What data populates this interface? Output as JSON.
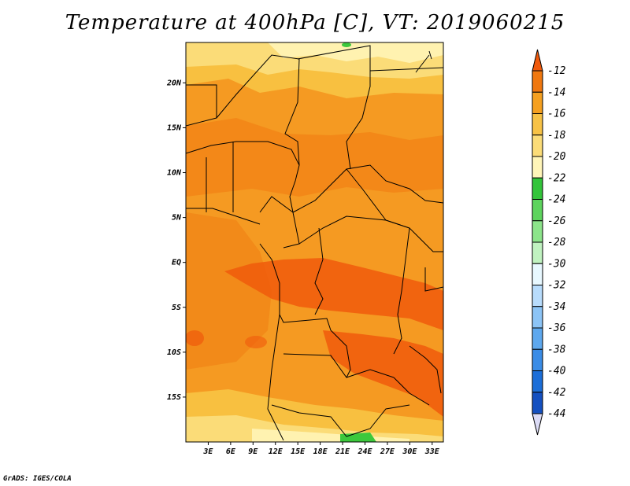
{
  "title": "Temperature at 400hPa [C], VT: 2019060215",
  "credit": "GrADS: IGES/COLA",
  "map": {
    "lon_range": [
      0,
      34.5
    ],
    "lat_range": [
      -20,
      24.5
    ],
    "lat_labels": [
      {
        "value": 20,
        "label": "20N"
      },
      {
        "value": 15,
        "label": "15N"
      },
      {
        "value": 10,
        "label": "10N"
      },
      {
        "value": 5,
        "label": "5N"
      },
      {
        "value": 0,
        "label": "EQ"
      },
      {
        "value": -5,
        "label": "5S"
      },
      {
        "value": -10,
        "label": "10S"
      },
      {
        "value": -15,
        "label": "15S"
      }
    ],
    "lon_labels": [
      {
        "value": 3,
        "label": "3E"
      },
      {
        "value": 6,
        "label": "6E"
      },
      {
        "value": 9,
        "label": "9E"
      },
      {
        "value": 12,
        "label": "12E"
      },
      {
        "value": 15,
        "label": "15E"
      },
      {
        "value": 18,
        "label": "18E"
      },
      {
        "value": 21,
        "label": "21E"
      },
      {
        "value": 24,
        "label": "24E"
      },
      {
        "value": 27,
        "label": "27E"
      },
      {
        "value": 30,
        "label": "30E"
      },
      {
        "value": 33,
        "label": "33E"
      }
    ]
  },
  "colorbar": {
    "labels": [
      "-12",
      "-14",
      "-16",
      "-18",
      "-20",
      "-22",
      "-24",
      "-26",
      "-28",
      "-30",
      "-32",
      "-34",
      "-36",
      "-38",
      "-40",
      "-42",
      "-44"
    ],
    "colors": [
      "#f05a0c",
      "#f0780f",
      "#f5a020",
      "#f7c246",
      "#fbdc78",
      "#fff5b8",
      "#33c43a",
      "#5ed45e",
      "#8ce48a",
      "#c0f2c0",
      "#e8f8ff",
      "#b8dcfc",
      "#8cc4f6",
      "#5ea8ee",
      "#3a8ce6",
      "#1c6ed8",
      "#1450c0",
      "#0a2a90"
    ],
    "top_color": "#f05a0c",
    "bottom_color": "#dcdcf6"
  },
  "legend_palette": {
    "t12": "#f05a0c",
    "t14": "#f07a10",
    "t16": "#f59a22",
    "t18": "#f8c040",
    "t20": "#fbdc78",
    "t22": "#fff2b0",
    "green": "#3cc83c"
  }
}
